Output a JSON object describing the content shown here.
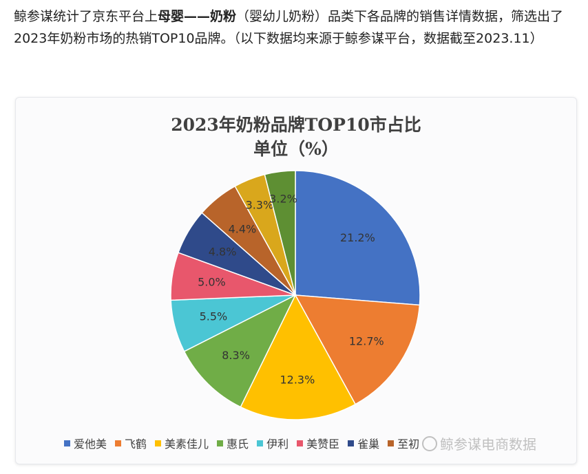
{
  "article": {
    "part1": "鲸参谋统计了京东平台上",
    "bold": "母婴——奶粉",
    "part2": "（婴幼儿奶粉）品类下各品牌的销售详情数据，筛选出了2023年奶粉市场的热销TOP10品牌。（以下数据均来源于鲸参谋平台，数据截至2023.11）"
  },
  "watermark": "鲸参谋电商数据",
  "chart_data": {
    "type": "pie",
    "title": "2023年奶粉品牌TOP10市占比",
    "subtitle": "单位（%）",
    "unit": "%",
    "legend_position": "bottom",
    "slices": [
      {
        "name": "爱他美",
        "value": 21.2,
        "label": "21.2%",
        "color": "#4472c4"
      },
      {
        "name": "飞鹤",
        "value": 12.7,
        "label": "12.7%",
        "color": "#ed7d31"
      },
      {
        "name": "美素佳儿",
        "value": 12.3,
        "label": "12.3%",
        "color": "#ffc000"
      },
      {
        "name": "惠氏",
        "value": 8.3,
        "label": "8.3%",
        "color": "#70ad47"
      },
      {
        "name": "伊利",
        "value": 5.5,
        "label": "5.5%",
        "color": "#4bc6d4"
      },
      {
        "name": "美赞臣",
        "value": 5.0,
        "label": "5.0%",
        "color": "#e8576c"
      },
      {
        "name": "雀巢",
        "value": 4.8,
        "label": "4.8%",
        "color": "#2f4a8a"
      },
      {
        "name": "至初",
        "value": 4.4,
        "label": "4.4%",
        "color": "#b8642a"
      },
      {
        "name": "",
        "value": 3.3,
        "label": "3.3%",
        "color": "#d9a71c"
      },
      {
        "name": "",
        "value": 3.2,
        "label": "3.2%",
        "color": "#5e8f33"
      }
    ]
  }
}
